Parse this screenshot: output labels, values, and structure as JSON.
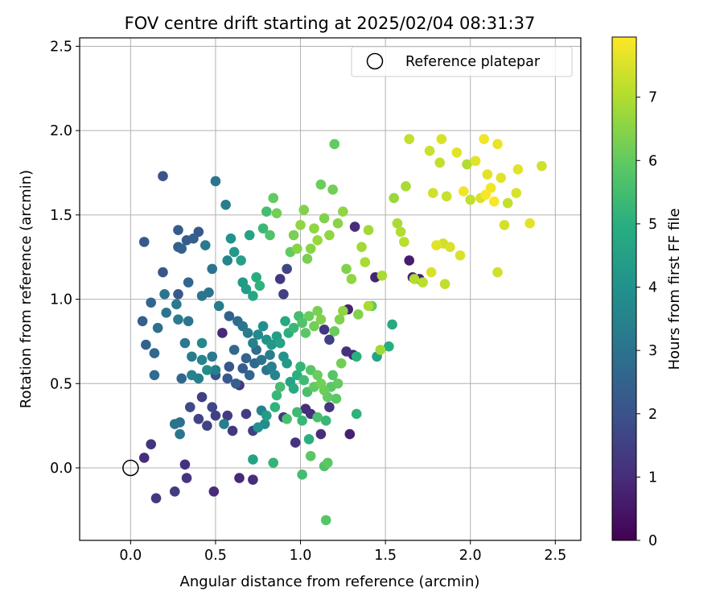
{
  "chart_data": {
    "type": "scatter",
    "title": "FOV centre drift starting at 2025/02/04 08:31:37",
    "xlabel": "Angular distance from reference (arcmin)",
    "ylabel": "Rotation from reference (arcmin)",
    "xlim": [
      -0.3,
      2.65
    ],
    "ylim": [
      -0.43,
      2.55
    ],
    "xticks": [
      "0.0",
      "0.5",
      "1.0",
      "1.5",
      "2.0",
      "2.5"
    ],
    "yticks": [
      "0.0",
      "0.5",
      "1.0",
      "1.5",
      "2.0",
      "2.5"
    ],
    "grid": true,
    "legend": {
      "position": "top-right",
      "entries": [
        "Reference platepar"
      ]
    },
    "reference": {
      "x": 0.0,
      "y": 0.0,
      "label": "Reference platepar"
    },
    "colorbar": {
      "label": "Hours from first FF file",
      "range": [
        0,
        7.95
      ],
      "ticks": [
        "0",
        "1",
        "2",
        "3",
        "4",
        "5",
        "6",
        "7"
      ],
      "colormap": "viridis"
    },
    "points": [
      [
        0.08,
        0.06,
        1.0
      ],
      [
        0.12,
        0.14,
        1.2
      ],
      [
        0.15,
        -0.18,
        1.3
      ],
      [
        0.26,
        -0.14,
        1.4
      ],
      [
        0.32,
        0.02,
        1.1
      ],
      [
        0.33,
        -0.06,
        1.2
      ],
      [
        0.49,
        -0.14,
        1.0
      ],
      [
        0.64,
        -0.06,
        0.9
      ],
      [
        0.72,
        -0.07,
        1.0
      ],
      [
        0.72,
        0.05,
        4.6
      ],
      [
        0.84,
        0.03,
        5.2
      ],
      [
        1.01,
        -0.04,
        5.5
      ],
      [
        1.14,
        0.01,
        5.7
      ],
      [
        1.15,
        -0.31,
        5.8
      ],
      [
        1.16,
        0.03,
        5.9
      ],
      [
        1.06,
        0.07,
        5.9
      ],
      [
        0.26,
        0.26,
        3.0
      ],
      [
        0.29,
        0.27,
        2.9
      ],
      [
        0.29,
        0.2,
        3.1
      ],
      [
        0.3,
        0.53,
        2.6
      ],
      [
        0.35,
        0.36,
        1.8
      ],
      [
        0.4,
        0.29,
        1.6
      ],
      [
        0.42,
        0.42,
        1.5
      ],
      [
        0.45,
        0.25,
        1.6
      ],
      [
        0.48,
        0.36,
        1.7
      ],
      [
        0.5,
        0.31,
        1.5
      ],
      [
        0.55,
        0.26,
        3.4
      ],
      [
        0.57,
        0.31,
        1.4
      ],
      [
        0.6,
        0.22,
        1.3
      ],
      [
        0.64,
        0.49,
        1.2
      ],
      [
        0.68,
        0.32,
        1.4
      ],
      [
        0.72,
        0.22,
        1.5
      ],
      [
        0.75,
        0.24,
        4.0
      ],
      [
        0.77,
        0.34,
        3.5
      ],
      [
        0.79,
        0.26,
        3.8
      ],
      [
        0.8,
        0.31,
        4.4
      ],
      [
        0.85,
        0.36,
        5.1
      ],
      [
        0.9,
        0.3,
        1.3
      ],
      [
        0.92,
        0.29,
        5.6
      ],
      [
        0.97,
        0.15,
        1.1
      ],
      [
        0.98,
        0.33,
        5.4
      ],
      [
        1.01,
        0.28,
        5.3
      ],
      [
        1.03,
        0.35,
        1.0
      ],
      [
        1.05,
        0.17,
        5.0
      ],
      [
        1.06,
        0.32,
        1.1
      ],
      [
        1.1,
        0.3,
        5.6
      ],
      [
        1.12,
        0.2,
        1.0
      ],
      [
        1.15,
        0.28,
        5.3
      ],
      [
        1.17,
        0.36,
        1.2
      ],
      [
        1.21,
        0.41,
        5.9
      ],
      [
        1.29,
        0.2,
        0.7
      ],
      [
        1.33,
        0.32,
        5.1
      ],
      [
        0.5,
        0.55,
        2.0
      ],
      [
        0.57,
        0.53,
        2.2
      ],
      [
        0.58,
        0.6,
        2.1
      ],
      [
        0.62,
        0.5,
        2.4
      ],
      [
        0.66,
        0.59,
        2.3
      ],
      [
        0.68,
        0.65,
        2.5
      ],
      [
        0.7,
        0.55,
        2.6
      ],
      [
        0.73,
        0.62,
        2.7
      ],
      [
        0.74,
        0.7,
        2.8
      ],
      [
        0.77,
        0.64,
        3.0
      ],
      [
        0.8,
        0.58,
        3.1
      ],
      [
        0.82,
        0.67,
        3.3
      ],
      [
        0.83,
        0.6,
        3.5
      ],
      [
        0.85,
        0.55,
        3.6
      ],
      [
        0.86,
        0.43,
        5.3
      ],
      [
        0.88,
        0.48,
        5.5
      ],
      [
        0.9,
        0.66,
        4.0
      ],
      [
        0.92,
        0.62,
        4.3
      ],
      [
        0.94,
        0.51,
        4.6
      ],
      [
        0.96,
        0.47,
        4.8
      ],
      [
        0.98,
        0.55,
        5.0
      ],
      [
        1.0,
        0.6,
        5.2
      ],
      [
        1.02,
        0.52,
        5.4
      ],
      [
        1.04,
        0.45,
        5.6
      ],
      [
        1.06,
        0.58,
        5.8
      ],
      [
        1.08,
        0.48,
        6.0
      ],
      [
        1.1,
        0.55,
        6.1
      ],
      [
        1.12,
        0.5,
        6.2
      ],
      [
        1.14,
        0.46,
        6.1
      ],
      [
        1.16,
        0.42,
        6.0
      ],
      [
        1.18,
        0.48,
        5.9
      ],
      [
        1.19,
        0.55,
        5.8
      ],
      [
        1.22,
        0.5,
        6.0
      ],
      [
        1.24,
        0.62,
        6.2
      ],
      [
        1.27,
        0.69,
        1.1
      ],
      [
        1.31,
        0.67,
        0.9
      ],
      [
        1.33,
        0.66,
        5.0
      ],
      [
        1.45,
        0.66,
        4.6
      ],
      [
        1.47,
        0.7,
        6.8
      ],
      [
        1.52,
        0.72,
        4.9
      ],
      [
        1.54,
        0.85,
        4.8
      ],
      [
        0.07,
        0.87,
        2.4
      ],
      [
        0.09,
        0.73,
        2.5
      ],
      [
        0.12,
        0.98,
        2.6
      ],
      [
        0.14,
        0.68,
        2.7
      ],
      [
        0.14,
        0.55,
        2.8
      ],
      [
        0.16,
        0.83,
        2.9
      ],
      [
        0.2,
        1.03,
        3.0
      ],
      [
        0.21,
        0.92,
        3.1
      ],
      [
        0.27,
        0.97,
        3.2
      ],
      [
        0.28,
        1.03,
        2.2
      ],
      [
        0.28,
        0.88,
        3.3
      ],
      [
        0.32,
        0.74,
        3.2
      ],
      [
        0.34,
        0.87,
        3.1
      ],
      [
        0.36,
        0.66,
        3.3
      ],
      [
        0.36,
        0.55,
        3.5
      ],
      [
        0.4,
        0.53,
        3.4
      ],
      [
        0.42,
        0.64,
        3.6
      ],
      [
        0.42,
        0.74,
        3.7
      ],
      [
        0.45,
        0.58,
        3.8
      ],
      [
        0.46,
        1.04,
        3.0
      ],
      [
        0.48,
        0.66,
        3.2
      ],
      [
        0.5,
        0.58,
        3.4
      ],
      [
        0.52,
        0.96,
        3.3
      ],
      [
        0.54,
        0.8,
        0.9
      ],
      [
        0.58,
        0.9,
        2.5
      ],
      [
        0.61,
        0.7,
        2.7
      ],
      [
        0.63,
        0.87,
        2.8
      ],
      [
        0.66,
        0.84,
        3.1
      ],
      [
        0.69,
        0.8,
        3.3
      ],
      [
        0.72,
        0.74,
        3.5
      ],
      [
        0.75,
        0.79,
        3.7
      ],
      [
        0.78,
        0.84,
        3.9
      ],
      [
        0.8,
        0.76,
        4.0
      ],
      [
        0.83,
        0.73,
        4.2
      ],
      [
        0.86,
        0.78,
        4.4
      ],
      [
        0.88,
        0.74,
        4.6
      ],
      [
        0.91,
        0.87,
        4.8
      ],
      [
        0.93,
        0.8,
        5.0
      ],
      [
        0.96,
        0.83,
        5.3
      ],
      [
        0.99,
        0.9,
        5.5
      ],
      [
        1.01,
        0.86,
        5.7
      ],
      [
        1.03,
        0.8,
        5.9
      ],
      [
        1.05,
        0.9,
        6.1
      ],
      [
        1.08,
        0.84,
        6.2
      ],
      [
        1.1,
        0.93,
        6.3
      ],
      [
        1.12,
        0.88,
        6.4
      ],
      [
        1.14,
        0.82,
        1.3
      ],
      [
        1.17,
        0.76,
        1.5
      ],
      [
        1.2,
        0.81,
        6.1
      ],
      [
        1.23,
        0.88,
        6.4
      ],
      [
        1.25,
        0.93,
        6.6
      ],
      [
        1.28,
        0.94,
        0.8
      ],
      [
        1.34,
        0.91,
        6.4
      ],
      [
        1.4,
        0.96,
        6.9
      ],
      [
        1.42,
        0.96,
        6.0
      ],
      [
        0.08,
        1.34,
        2.2
      ],
      [
        0.19,
        1.73,
        2.0
      ],
      [
        0.19,
        1.16,
        2.1
      ],
      [
        0.28,
        1.41,
        2.3
      ],
      [
        0.28,
        1.31,
        2.4
      ],
      [
        0.3,
        1.3,
        2.5
      ],
      [
        0.33,
        1.35,
        2.3
      ],
      [
        0.34,
        1.1,
        2.6
      ],
      [
        0.37,
        1.36,
        2.4
      ],
      [
        0.4,
        1.4,
        2.2
      ],
      [
        0.42,
        1.02,
        3.1
      ],
      [
        0.44,
        1.32,
        3.2
      ],
      [
        0.48,
        1.18,
        3.0
      ],
      [
        0.5,
        1.7,
        3.1
      ],
      [
        0.56,
        1.56,
        3.3
      ],
      [
        0.57,
        1.23,
        3.6
      ],
      [
        0.59,
        1.36,
        4.0
      ],
      [
        0.61,
        1.28,
        4.2
      ],
      [
        0.65,
        1.23,
        4.5
      ],
      [
        0.66,
        1.1,
        4.3
      ],
      [
        0.68,
        1.06,
        4.4
      ],
      [
        0.7,
        1.38,
        4.6
      ],
      [
        0.72,
        1.02,
        4.7
      ],
      [
        0.74,
        1.13,
        4.9
      ],
      [
        0.76,
        1.08,
        5.1
      ],
      [
        0.78,
        1.42,
        5.3
      ],
      [
        0.8,
        1.52,
        5.5
      ],
      [
        0.82,
        1.38,
        5.7
      ],
      [
        0.84,
        1.6,
        6.0
      ],
      [
        0.86,
        1.51,
        6.2
      ],
      [
        0.88,
        1.12,
        1.3
      ],
      [
        0.9,
        1.03,
        1.5
      ],
      [
        0.92,
        1.18,
        1.7
      ],
      [
        0.94,
        1.28,
        6.0
      ],
      [
        0.96,
        1.38,
        6.3
      ],
      [
        0.98,
        1.3,
        6.5
      ],
      [
        1.0,
        1.44,
        6.6
      ],
      [
        1.02,
        1.53,
        6.4
      ],
      [
        1.04,
        1.24,
        6.3
      ],
      [
        1.06,
        1.3,
        6.5
      ],
      [
        1.08,
        1.42,
        6.6
      ],
      [
        1.1,
        1.35,
        6.7
      ],
      [
        1.12,
        1.68,
        6.1
      ],
      [
        1.14,
        1.48,
        6.4
      ],
      [
        1.17,
        1.38,
        6.6
      ],
      [
        1.19,
        1.65,
        6.2
      ],
      [
        1.2,
        1.92,
        6.0
      ],
      [
        1.22,
        1.45,
        6.5
      ],
      [
        1.25,
        1.52,
        6.6
      ],
      [
        1.27,
        1.18,
        6.4
      ],
      [
        1.3,
        1.12,
        6.6
      ],
      [
        1.32,
        1.43,
        1.0
      ],
      [
        1.36,
        1.31,
        6.8
      ],
      [
        1.38,
        1.22,
        6.9
      ],
      [
        1.4,
        1.41,
        6.8
      ],
      [
        1.44,
        1.13,
        0.8
      ],
      [
        1.48,
        1.14,
        6.9
      ],
      [
        1.55,
        1.6,
        6.7
      ],
      [
        1.57,
        1.45,
        6.9
      ],
      [
        1.59,
        1.4,
        7.0
      ],
      [
        1.61,
        1.34,
        7.1
      ],
      [
        1.62,
        1.67,
        6.9
      ],
      [
        1.64,
        1.23,
        0.6
      ],
      [
        1.64,
        1.95,
        7.2
      ],
      [
        1.66,
        1.13,
        0.8
      ],
      [
        1.67,
        1.12,
        7.0
      ],
      [
        1.7,
        1.12,
        0.7
      ],
      [
        1.72,
        1.1,
        7.1
      ],
      [
        1.76,
        1.88,
        7.3
      ],
      [
        1.78,
        1.63,
        7.4
      ],
      [
        1.8,
        1.32,
        7.6
      ],
      [
        1.82,
        1.81,
        7.2
      ],
      [
        1.83,
        1.95,
        7.5
      ],
      [
        1.84,
        1.33,
        7.4
      ],
      [
        1.86,
        1.61,
        7.3
      ],
      [
        1.88,
        1.31,
        7.5
      ],
      [
        1.92,
        1.87,
        7.6
      ],
      [
        1.94,
        1.26,
        7.5
      ],
      [
        1.96,
        1.64,
        7.8
      ],
      [
        1.98,
        1.8,
        7.0
      ],
      [
        2.0,
        1.59,
        7.2
      ],
      [
        2.03,
        1.82,
        7.6
      ],
      [
        2.06,
        1.6,
        7.5
      ],
      [
        2.08,
        1.95,
        7.8
      ],
      [
        2.09,
        1.62,
        7.9
      ],
      [
        2.1,
        1.74,
        7.6
      ],
      [
        2.12,
        1.66,
        7.8
      ],
      [
        2.14,
        1.58,
        7.9
      ],
      [
        2.16,
        1.92,
        7.7
      ],
      [
        2.16,
        1.16,
        7.4
      ],
      [
        2.18,
        1.72,
        7.6
      ],
      [
        2.2,
        1.44,
        7.4
      ],
      [
        2.22,
        1.57,
        7.2
      ],
      [
        2.27,
        1.63,
        7.5
      ],
      [
        2.28,
        1.77,
        7.6
      ],
      [
        2.35,
        1.45,
        7.6
      ],
      [
        2.42,
        1.79,
        7.4
      ],
      [
        1.85,
        1.09,
        7.2
      ],
      [
        1.77,
        1.16,
        7.5
      ]
    ]
  }
}
